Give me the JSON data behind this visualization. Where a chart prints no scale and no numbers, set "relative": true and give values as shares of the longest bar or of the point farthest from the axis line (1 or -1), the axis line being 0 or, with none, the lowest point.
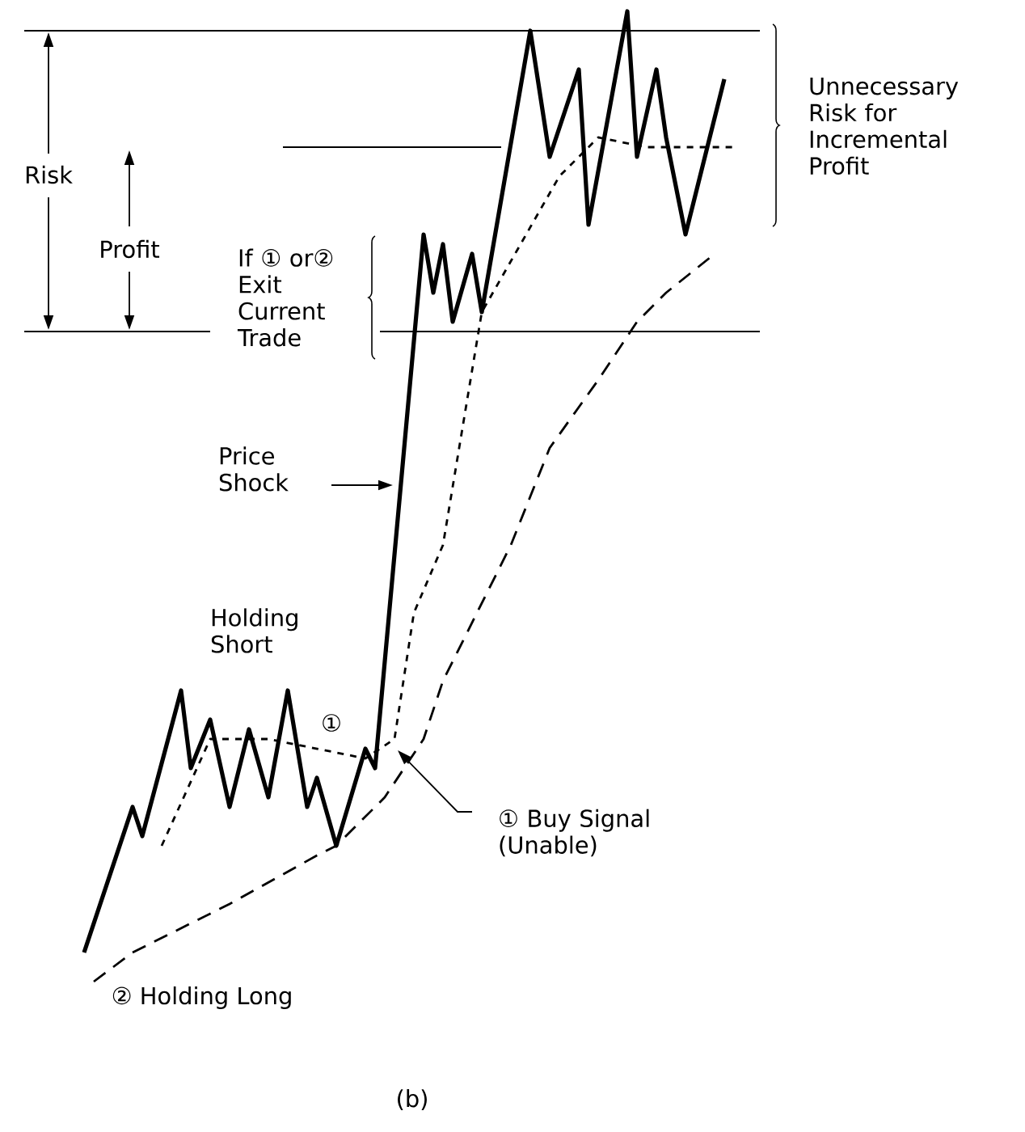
{
  "chart_data": {
    "type": "line",
    "relative": true,
    "marker": "none",
    "categories": [
      null,
      null,
      null,
      null,
      null,
      null,
      null,
      null,
      null,
      null,
      null,
      null,
      null,
      null,
      null,
      null,
      null,
      null,
      null,
      null,
      null,
      null,
      null,
      null,
      null,
      null,
      null,
      null,
      null,
      null,
      null,
      null,
      null,
      null,
      null,
      null,
      null,
      null,
      null,
      null,
      null,
      null,
      null,
      null,
      null,
      null,
      null,
      null,
      null,
      null,
      null,
      null,
      null,
      null,
      null,
      null,
      null,
      null,
      null,
      null,
      null,
      null,
      null,
      null,
      null,
      null,
      null,
      null
    ],
    "series": [
      {
        "color": "#000000",
        "line_style": "solid",
        "values": [
          0.03,
          null,
          null,
          null,
          null,
          0.18,
          0.15,
          null,
          null,
          null,
          0.3,
          0.22,
          null,
          0.27,
          null,
          0.18,
          null,
          0.26,
          null,
          0.19,
          null,
          0.3,
          null,
          0.18,
          0.21,
          null,
          0.14,
          null,
          null,
          0.24,
          0.22,
          null,
          null,
          null,
          null,
          0.77,
          0.71,
          0.76,
          0.68,
          null,
          0.75,
          0.69,
          null,
          null,
          null,
          null,
          0.98,
          null,
          0.85,
          null,
          null,
          0.94,
          0.78,
          null,
          null,
          null,
          1.0,
          0.85,
          null,
          0.94,
          0.87,
          null,
          0.77,
          null,
          null,
          null,
          0.93,
          null
        ]
      },
      {
        "color": "#000000",
        "line_style": "dotted",
        "values": [
          null,
          null,
          null,
          null,
          null,
          null,
          null,
          null,
          0.14,
          null,
          null,
          null,
          null,
          0.25,
          null,
          null,
          null,
          null,
          null,
          0.25,
          null,
          null,
          null,
          null,
          0.24,
          null,
          null,
          null,
          null,
          0.23,
          null,
          null,
          0.25,
          null,
          0.38,
          null,
          null,
          0.45,
          null,
          null,
          null,
          0.69,
          null,
          null,
          null,
          0.76,
          null,
          null,
          null,
          0.83,
          null,
          null,
          null,
          0.87,
          null,
          null,
          null,
          null,
          0.86,
          null,
          null,
          null,
          null,
          0.86,
          null,
          null,
          null,
          0.86
        ]
      },
      {
        "color": "#000000",
        "line_style": "dashed",
        "values": [
          null,
          0.0,
          null,
          null,
          null,
          0.03,
          null,
          null,
          null,
          null,
          null,
          null,
          null,
          null,
          null,
          0.08,
          null,
          null,
          null,
          null,
          null,
          null,
          null,
          null,
          0.13,
          null,
          0.14,
          null,
          null,
          null,
          null,
          0.19,
          null,
          null,
          null,
          0.25,
          null,
          0.31,
          null,
          null,
          null,
          null,
          null,
          null,
          0.45,
          null,
          null,
          null,
          0.55,
          null,
          null,
          null,
          null,
          0.62,
          null,
          null,
          null,
          0.68,
          null,
          null,
          0.71,
          null,
          null,
          null,
          null,
          0.75,
          null,
          null
        ]
      }
    ],
    "ref_lines": [
      {
        "axis": "y",
        "value": 0.98
      },
      {
        "axis": "y",
        "value": 0.86
      },
      {
        "axis": "y",
        "value": 0.67
      }
    ],
    "annotations": [
      "Risk",
      "Profit",
      "If ① or② Exit Current Trade",
      "Unnecessary Risk for Incremental Profit",
      "Price Shock",
      "Holding Short",
      "①",
      "① Buy Signal (Unable)",
      "② Holding Long",
      "(b)"
    ]
  }
}
